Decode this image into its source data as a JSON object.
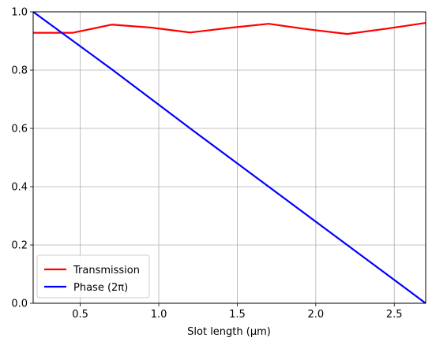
{
  "chart_data": {
    "type": "line",
    "title": "",
    "xlabel": "Slot length (μm)",
    "ylabel": "",
    "xlim": [
      0.2,
      2.7
    ],
    "ylim": [
      0.0,
      1.0
    ],
    "xticks": [
      0.5,
      1.0,
      1.5,
      2.0,
      2.5
    ],
    "xtick_labels": [
      "0.5",
      "1.0",
      "1.5",
      "2.0",
      "2.5"
    ],
    "yticks": [
      0.0,
      0.2,
      0.4,
      0.6,
      0.8,
      1.0
    ],
    "ytick_labels": [
      "0.0",
      "0.2",
      "0.4",
      "0.6",
      "0.8",
      "1.0"
    ],
    "grid": true,
    "legend_position": "lower-left",
    "series": [
      {
        "name": "Transmission",
        "color": "#ff0000",
        "x": [
          0.2,
          0.45,
          0.7,
          0.95,
          1.2,
          1.45,
          1.7,
          1.95,
          2.2,
          2.45,
          2.7
        ],
        "y": [
          0.928,
          0.928,
          0.956,
          0.946,
          0.929,
          0.945,
          0.959,
          0.94,
          0.924,
          0.942,
          0.962
        ]
      },
      {
        "name": "Phase (2π)",
        "color": "#0000ff",
        "x": [
          0.2,
          0.7,
          1.2,
          1.7,
          2.2,
          2.7
        ],
        "y": [
          1.0,
          0.803,
          0.6,
          0.4,
          0.2,
          0.0
        ]
      }
    ]
  }
}
